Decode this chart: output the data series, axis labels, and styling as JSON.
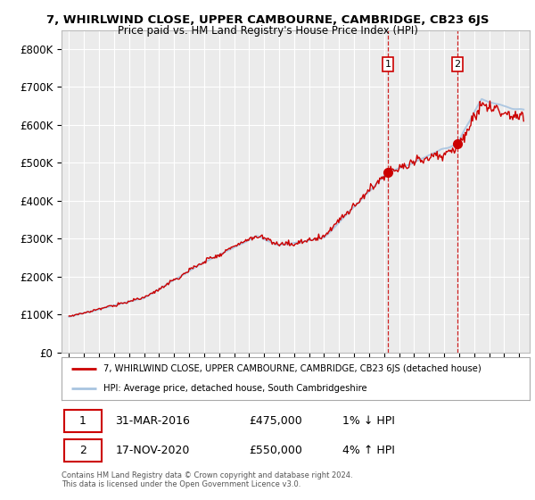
{
  "title": "7, WHIRLWIND CLOSE, UPPER CAMBOURNE, CAMBRIDGE, CB23 6JS",
  "subtitle": "Price paid vs. HM Land Registry's House Price Index (HPI)",
  "ylabel_ticks": [
    "£0",
    "£100K",
    "£200K",
    "£300K",
    "£400K",
    "£500K",
    "£600K",
    "£700K",
    "£800K"
  ],
  "ytick_values": [
    0,
    100000,
    200000,
    300000,
    400000,
    500000,
    600000,
    700000,
    800000
  ],
  "ylim": [
    0,
    850000
  ],
  "hpi_color": "#a8c4e0",
  "price_color": "#cc0000",
  "vline_color": "#cc0000",
  "marker_color": "#cc0000",
  "legend_line1": "7, WHIRLWIND CLOSE, UPPER CAMBOURNE, CAMBRIDGE, CB23 6JS (detached house)",
  "legend_line2": "HPI: Average price, detached house, South Cambridgeshire",
  "transaction1_date": "31-MAR-2016",
  "transaction1_price": "£475,000",
  "transaction1_hpi": "1% ↓ HPI",
  "transaction1_year": 2016.25,
  "transaction1_value": 475000,
  "transaction2_date": "17-NOV-2020",
  "transaction2_price": "£550,000",
  "transaction2_hpi": "4% ↑ HPI",
  "transaction2_year": 2020.88,
  "transaction2_value": 550000,
  "footnote1": "Contains HM Land Registry data © Crown copyright and database right 2024.",
  "footnote2": "This data is licensed under the Open Government Licence v3.0.",
  "background_color": "#ffffff",
  "plot_bg_color": "#ebebeb",
  "grid_color": "#ffffff"
}
